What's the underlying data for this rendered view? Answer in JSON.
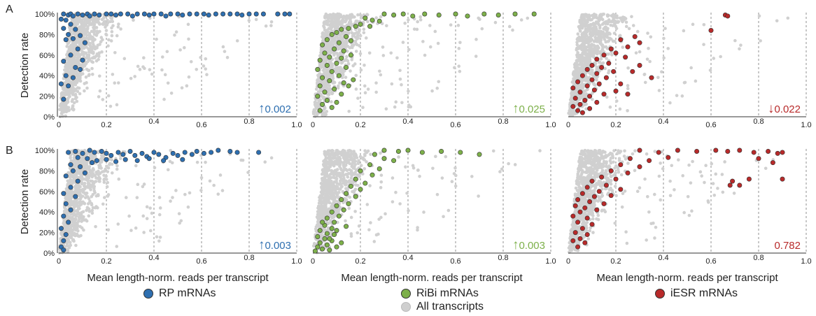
{
  "row_labels": [
    "A",
    "B"
  ],
  "ylabel": "Detection rate",
  "xlabel": "Mean length-norm. reads per transcript",
  "legend": [
    {
      "label": "RP mRNAs",
      "color": "#2e6fb0"
    },
    {
      "label": "RiBi mRNAs",
      "color": "#7db04a"
    },
    {
      "label": "iESR mRNAs",
      "color": "#b82a2a"
    },
    {
      "label": "All transcripts",
      "color": "#cfcfcf"
    }
  ],
  "chart_data": [
    {
      "type": "scatter",
      "row": "A",
      "group": "RP mRNAs",
      "color": "#2e6fb0",
      "xlim": [
        0,
        1.0
      ],
      "ylim": [
        0,
        100
      ],
      "xticks": [
        "0",
        "0.2",
        "0.4",
        "0.6",
        "0.8",
        "1.0"
      ],
      "yticks": [
        "0%",
        "20%",
        "40%",
        "60%",
        "80%",
        "100%"
      ],
      "annotation": {
        "arrow": "↑",
        "text": "0.002"
      },
      "points": [
        [
          0.02,
          100
        ],
        [
          0.04,
          99
        ],
        [
          0.05,
          100
        ],
        [
          0.06,
          98
        ],
        [
          0.08,
          100
        ],
        [
          0.1,
          99
        ],
        [
          0.12,
          100
        ],
        [
          0.13,
          98
        ],
        [
          0.15,
          100
        ],
        [
          0.17,
          99
        ],
        [
          0.2,
          100
        ],
        [
          0.22,
          100
        ],
        [
          0.24,
          99
        ],
        [
          0.26,
          100
        ],
        [
          0.29,
          100
        ],
        [
          0.31,
          98
        ],
        [
          0.33,
          100
        ],
        [
          0.36,
          100
        ],
        [
          0.38,
          99
        ],
        [
          0.4,
          100
        ],
        [
          0.43,
          100
        ],
        [
          0.45,
          98
        ],
        [
          0.47,
          100
        ],
        [
          0.5,
          100
        ],
        [
          0.52,
          99
        ],
        [
          0.55,
          100
        ],
        [
          0.58,
          100
        ],
        [
          0.61,
          100
        ],
        [
          0.63,
          99
        ],
        [
          0.66,
          100
        ],
        [
          0.69,
          100
        ],
        [
          0.72,
          100
        ],
        [
          0.75,
          100
        ],
        [
          0.77,
          99
        ],
        [
          0.8,
          100
        ],
        [
          0.83,
          100
        ],
        [
          0.86,
          100
        ],
        [
          0.92,
          100
        ],
        [
          0.95,
          100
        ],
        [
          0.97,
          100
        ],
        [
          0.01,
          95
        ],
        [
          0.03,
          94
        ],
        [
          0.05,
          90
        ],
        [
          0.02,
          86
        ],
        [
          0.07,
          85
        ],
        [
          0.04,
          80
        ],
        [
          0.09,
          79
        ],
        [
          0.06,
          76
        ],
        [
          0.11,
          72
        ],
        [
          0.03,
          75
        ],
        [
          0.08,
          66
        ],
        [
          0.05,
          60
        ],
        [
          0.02,
          54
        ],
        [
          0.1,
          55
        ],
        [
          0.07,
          48
        ],
        [
          0.09,
          46
        ],
        [
          0.03,
          40
        ],
        [
          0.06,
          38
        ],
        [
          0.01,
          32
        ],
        [
          0.04,
          30
        ],
        [
          0.02,
          17
        ]
      ]
    },
    {
      "type": "scatter",
      "row": "A",
      "group": "RiBi mRNAs",
      "color": "#7db04a",
      "xlim": [
        0,
        1.0
      ],
      "ylim": [
        0,
        100
      ],
      "xticks": [
        "0",
        "0.2",
        "0.4",
        "0.6",
        "0.8",
        "1.0"
      ],
      "yticks": [
        "0%",
        "20%",
        "40%",
        "60%",
        "80%",
        "100%"
      ],
      "annotation": {
        "arrow": "↑",
        "text": "0.025"
      },
      "points": [
        [
          0.3,
          100
        ],
        [
          0.34,
          99
        ],
        [
          0.38,
          100
        ],
        [
          0.42,
          98
        ],
        [
          0.47,
          100
        ],
        [
          0.53,
          99
        ],
        [
          0.6,
          100
        ],
        [
          0.65,
          98
        ],
        [
          0.72,
          100
        ],
        [
          0.78,
          99
        ],
        [
          0.85,
          100
        ],
        [
          0.93,
          100
        ],
        [
          0.22,
          96
        ],
        [
          0.25,
          94
        ],
        [
          0.28,
          93
        ],
        [
          0.2,
          90
        ],
        [
          0.18,
          88
        ],
        [
          0.15,
          86
        ],
        [
          0.24,
          88
        ],
        [
          0.12,
          85
        ],
        [
          0.1,
          82
        ],
        [
          0.14,
          78
        ],
        [
          0.08,
          80
        ],
        [
          0.06,
          75
        ],
        [
          0.11,
          72
        ],
        [
          0.16,
          74
        ],
        [
          0.04,
          70
        ],
        [
          0.09,
          66
        ],
        [
          0.13,
          64
        ],
        [
          0.05,
          62
        ],
        [
          0.07,
          58
        ],
        [
          0.12,
          57
        ],
        [
          0.03,
          55
        ],
        [
          0.1,
          52
        ],
        [
          0.06,
          50
        ],
        [
          0.14,
          48
        ],
        [
          0.02,
          46
        ],
        [
          0.08,
          44
        ],
        [
          0.11,
          40
        ],
        [
          0.04,
          38
        ],
        [
          0.07,
          35
        ],
        [
          0.13,
          33
        ],
        [
          0.03,
          30
        ],
        [
          0.09,
          27
        ],
        [
          0.05,
          24
        ],
        [
          0.12,
          22
        ],
        [
          0.02,
          20
        ],
        [
          0.06,
          16
        ],
        [
          0.1,
          14
        ],
        [
          0.04,
          12
        ],
        [
          0.08,
          9
        ],
        [
          0.03,
          6
        ],
        [
          0.15,
          30
        ],
        [
          0.17,
          36
        ],
        [
          0.16,
          60
        ]
      ]
    },
    {
      "type": "scatter",
      "row": "A",
      "group": "iESR mRNAs",
      "color": "#b82a2a",
      "xlim": [
        0,
        1.0
      ],
      "ylim": [
        0,
        100
      ],
      "xticks": [
        "0",
        "0.2",
        "0.4",
        "0.6",
        "0.8",
        "1.0"
      ],
      "yticks": [
        "0%",
        "20%",
        "40%",
        "60%",
        "80%",
        "100%"
      ],
      "annotation": {
        "arrow": "↓",
        "text": "0.022"
      },
      "points": [
        [
          0.66,
          99
        ],
        [
          0.67,
          98
        ],
        [
          0.6,
          84
        ],
        [
          0.28,
          78
        ],
        [
          0.22,
          75
        ],
        [
          0.3,
          72
        ],
        [
          0.25,
          68
        ],
        [
          0.18,
          66
        ],
        [
          0.2,
          62
        ],
        [
          0.15,
          60
        ],
        [
          0.24,
          58
        ],
        [
          0.12,
          56
        ],
        [
          0.17,
          52
        ],
        [
          0.1,
          50
        ],
        [
          0.14,
          48
        ],
        [
          0.08,
          46
        ],
        [
          0.19,
          44
        ],
        [
          0.12,
          42
        ],
        [
          0.06,
          40
        ],
        [
          0.16,
          38
        ],
        [
          0.1,
          36
        ],
        [
          0.04,
          34
        ],
        [
          0.13,
          32
        ],
        [
          0.08,
          30
        ],
        [
          0.02,
          28
        ],
        [
          0.11,
          26
        ],
        [
          0.05,
          24
        ],
        [
          0.15,
          22
        ],
        [
          0.09,
          20
        ],
        [
          0.03,
          18
        ],
        [
          0.07,
          16
        ],
        [
          0.12,
          14
        ],
        [
          0.05,
          12
        ],
        [
          0.02,
          10
        ],
        [
          0.09,
          8
        ],
        [
          0.04,
          6
        ],
        [
          0.06,
          4
        ],
        [
          0.35,
          38
        ],
        [
          0.2,
          25
        ],
        [
          0.25,
          22
        ],
        [
          0.22,
          32
        ],
        [
          0.3,
          50
        ],
        [
          0.27,
          44
        ]
      ]
    },
    {
      "type": "scatter",
      "row": "B",
      "group": "RP mRNAs",
      "color": "#2e6fb0",
      "xlim": [
        0,
        1.0
      ],
      "ylim": [
        0,
        100
      ],
      "xticks": [
        "0",
        "0.2",
        "0.4",
        "0.6",
        "0.8",
        "1.0"
      ],
      "yticks": [
        "0%",
        "20%",
        "40%",
        "60%",
        "80%",
        "100%"
      ],
      "annotation": {
        "arrow": "↑",
        "text": "0.003"
      },
      "points": [
        [
          0.04,
          98
        ],
        [
          0.07,
          99
        ],
        [
          0.1,
          97
        ],
        [
          0.13,
          100
        ],
        [
          0.15,
          98
        ],
        [
          0.18,
          99
        ],
        [
          0.2,
          97
        ],
        [
          0.22,
          95
        ],
        [
          0.25,
          98
        ],
        [
          0.27,
          96
        ],
        [
          0.3,
          99
        ],
        [
          0.32,
          95
        ],
        [
          0.35,
          97
        ],
        [
          0.37,
          94
        ],
        [
          0.4,
          98
        ],
        [
          0.42,
          96
        ],
        [
          0.45,
          93
        ],
        [
          0.48,
          97
        ],
        [
          0.5,
          95
        ],
        [
          0.53,
          98
        ],
        [
          0.56,
          96
        ],
        [
          0.58,
          99
        ],
        [
          0.61,
          97
        ],
        [
          0.64,
          98
        ],
        [
          0.67,
          100
        ],
        [
          0.72,
          99
        ],
        [
          0.75,
          98
        ],
        [
          0.84,
          98
        ],
        [
          0.08,
          93
        ],
        [
          0.12,
          92
        ],
        [
          0.16,
          90
        ],
        [
          0.2,
          91
        ],
        [
          0.24,
          89
        ],
        [
          0.28,
          91
        ],
        [
          0.33,
          90
        ],
        [
          0.38,
          92
        ],
        [
          0.44,
          90
        ],
        [
          0.52,
          91
        ],
        [
          0.05,
          86
        ],
        [
          0.09,
          84
        ],
        [
          0.14,
          88
        ],
        [
          0.06,
          80
        ],
        [
          0.11,
          78
        ],
        [
          0.03,
          75
        ],
        [
          0.08,
          70
        ],
        [
          0.05,
          64
        ],
        [
          0.02,
          58
        ],
        [
          0.07,
          55
        ],
        [
          0.03,
          48
        ],
        [
          0.05,
          42
        ],
        [
          0.02,
          36
        ],
        [
          0.04,
          30
        ],
        [
          0.01,
          24
        ],
        [
          0.03,
          18
        ],
        [
          0.02,
          12
        ],
        [
          0.01,
          6
        ],
        [
          0.02,
          3
        ]
      ]
    },
    {
      "type": "scatter",
      "row": "B",
      "group": "RiBi mRNAs",
      "color": "#7db04a",
      "xlim": [
        0,
        1.0
      ],
      "ylim": [
        0,
        100
      ],
      "xticks": [
        "0",
        "0.2",
        "0.4",
        "0.6",
        "0.8",
        "1.0"
      ],
      "yticks": [
        "0%",
        "20%",
        "40%",
        "60%",
        "80%",
        "100%"
      ],
      "annotation": {
        "arrow": "↑",
        "text": "0.003"
      },
      "points": [
        [
          0.3,
          100
        ],
        [
          0.36,
          99
        ],
        [
          0.4,
          100
        ],
        [
          0.46,
          98
        ],
        [
          0.54,
          99
        ],
        [
          0.62,
          98
        ],
        [
          0.7,
          96
        ],
        [
          0.26,
          96
        ],
        [
          0.3,
          92
        ],
        [
          0.34,
          90
        ],
        [
          0.24,
          86
        ],
        [
          0.28,
          82
        ],
        [
          0.2,
          80
        ],
        [
          0.25,
          76
        ],
        [
          0.18,
          72
        ],
        [
          0.22,
          68
        ],
        [
          0.16,
          65
        ],
        [
          0.2,
          62
        ],
        [
          0.14,
          58
        ],
        [
          0.18,
          55
        ],
        [
          0.12,
          52
        ],
        [
          0.15,
          48
        ],
        [
          0.1,
          46
        ],
        [
          0.13,
          42
        ],
        [
          0.08,
          40
        ],
        [
          0.11,
          36
        ],
        [
          0.06,
          34
        ],
        [
          0.09,
          30
        ],
        [
          0.05,
          27
        ],
        [
          0.08,
          24
        ],
        [
          0.03,
          22
        ],
        [
          0.06,
          19
        ],
        [
          0.02,
          16
        ],
        [
          0.05,
          14
        ],
        [
          0.08,
          12
        ],
        [
          0.03,
          10
        ],
        [
          0.06,
          8
        ],
        [
          0.02,
          6
        ],
        [
          0.04,
          4
        ],
        [
          0.07,
          3
        ],
        [
          0.01,
          2
        ],
        [
          0.1,
          6
        ],
        [
          0.12,
          10
        ],
        [
          0.09,
          18
        ],
        [
          0.14,
          26
        ],
        [
          0.04,
          30
        ],
        [
          0.1,
          22
        ],
        [
          0.07,
          14
        ]
      ]
    },
    {
      "type": "scatter",
      "row": "B",
      "group": "iESR mRNAs",
      "color": "#b82a2a",
      "xlim": [
        0,
        1.0
      ],
      "ylim": [
        0,
        100
      ],
      "xticks": [
        "0",
        "0.2",
        "0.4",
        "0.6",
        "0.8",
        "1.0"
      ],
      "yticks": [
        "0%",
        "20%",
        "40%",
        "60%",
        "80%",
        "100%"
      ],
      "annotation": {
        "arrow": "",
        "text": "0.782"
      },
      "points": [
        [
          0.3,
          100
        ],
        [
          0.38,
          98
        ],
        [
          0.46,
          100
        ],
        [
          0.54,
          99
        ],
        [
          0.62,
          100
        ],
        [
          0.67,
          99
        ],
        [
          0.72,
          100
        ],
        [
          0.78,
          98
        ],
        [
          0.84,
          99
        ],
        [
          0.88,
          97
        ],
        [
          0.9,
          98
        ],
        [
          0.8,
          92
        ],
        [
          0.86,
          88
        ],
        [
          0.9,
          72
        ],
        [
          0.72,
          66
        ],
        [
          0.76,
          72
        ],
        [
          0.69,
          70
        ],
        [
          0.68,
          66
        ],
        [
          0.26,
          92
        ],
        [
          0.34,
          90
        ],
        [
          0.42,
          93
        ],
        [
          0.22,
          86
        ],
        [
          0.3,
          84
        ],
        [
          0.18,
          80
        ],
        [
          0.25,
          78
        ],
        [
          0.14,
          74
        ],
        [
          0.2,
          72
        ],
        [
          0.1,
          70
        ],
        [
          0.16,
          66
        ],
        [
          0.08,
          64
        ],
        [
          0.13,
          60
        ],
        [
          0.06,
          58
        ],
        [
          0.11,
          55
        ],
        [
          0.04,
          52
        ],
        [
          0.09,
          50
        ],
        [
          0.03,
          46
        ],
        [
          0.07,
          44
        ],
        [
          0.12,
          42
        ],
        [
          0.05,
          40
        ],
        [
          0.02,
          36
        ],
        [
          0.08,
          34
        ],
        [
          0.04,
          30
        ],
        [
          0.1,
          28
        ],
        [
          0.06,
          24
        ],
        [
          0.03,
          20
        ],
        [
          0.08,
          18
        ],
        [
          0.05,
          14
        ],
        [
          0.02,
          12
        ],
        [
          0.07,
          10
        ],
        [
          0.04,
          6
        ],
        [
          0.15,
          48
        ],
        [
          0.18,
          56
        ],
        [
          0.22,
          62
        ]
      ]
    }
  ]
}
